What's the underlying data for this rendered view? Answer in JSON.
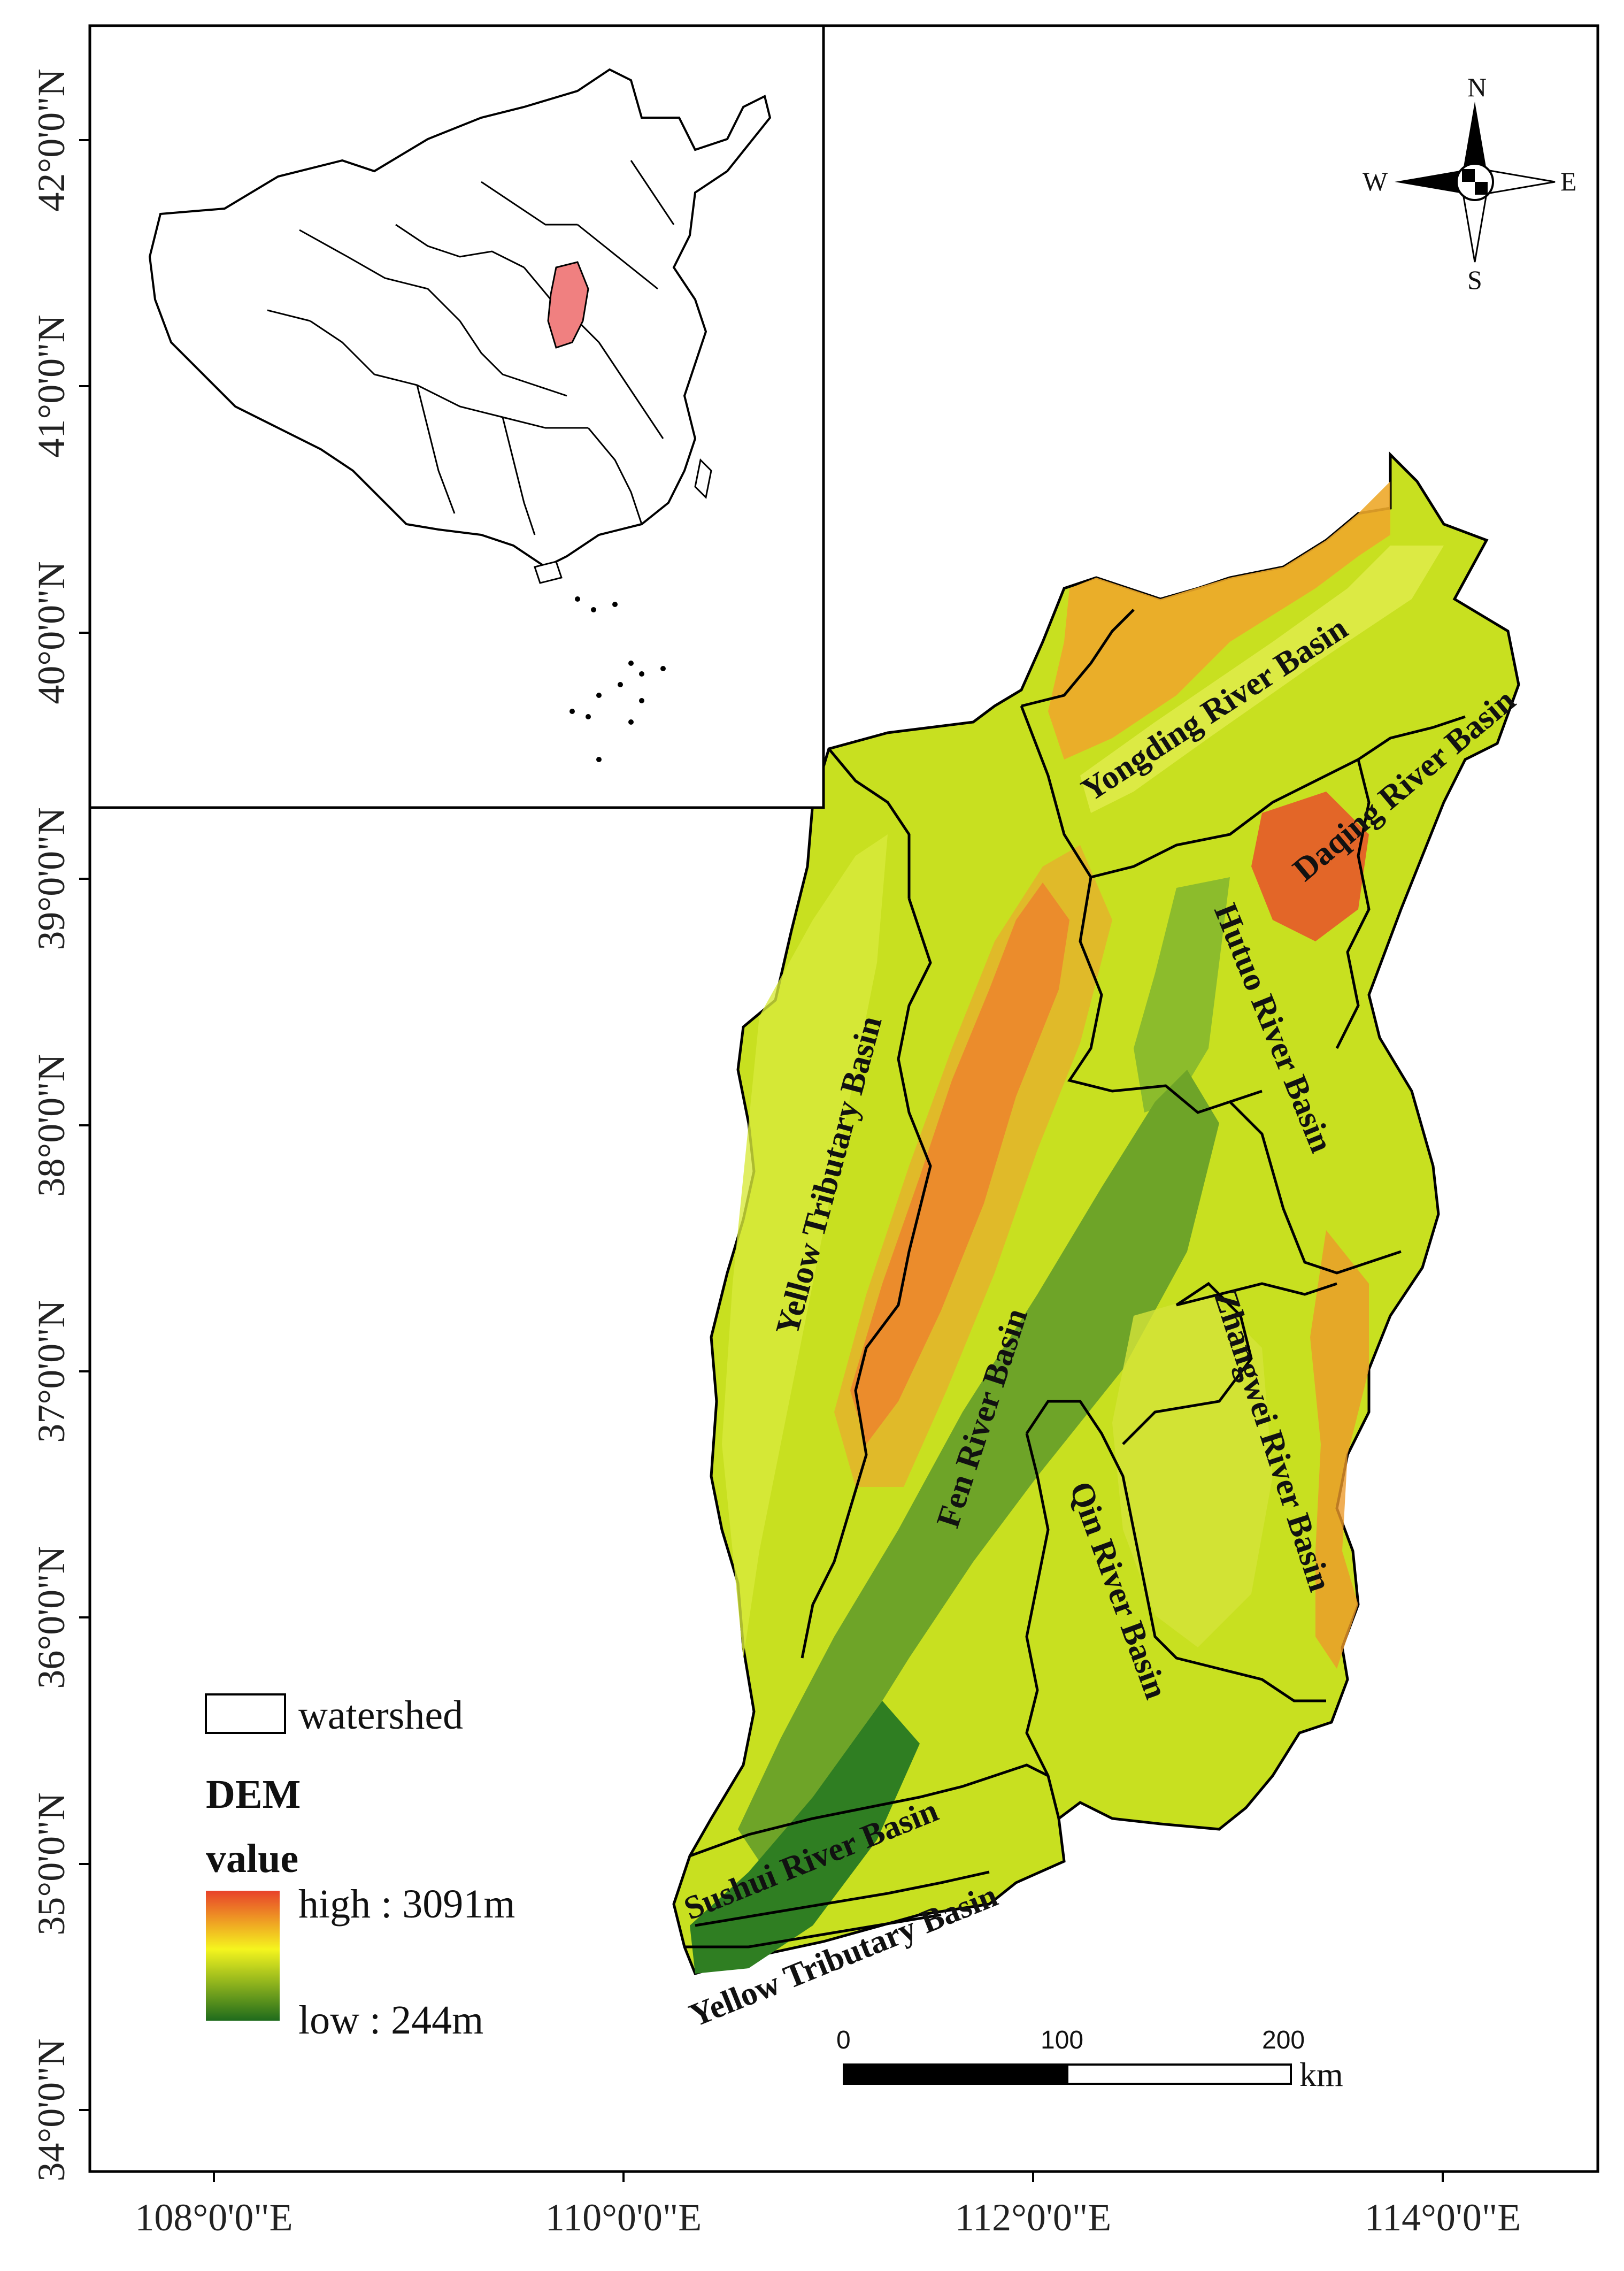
{
  "axes": {
    "lat_labels": [
      "42°0'0\"N",
      "41°0'0\"N",
      "40°0'0\"N",
      "39°0'0\"N",
      "38°0'0\"N",
      "37°0'0\"N",
      "36°0'0\"N",
      "35°0'0\"N",
      "34°0'0\"N"
    ],
    "lon_labels": [
      "108°0'0\"E",
      "110°0'0\"E",
      "112°0'0\"E",
      "114°0'0\"E"
    ]
  },
  "compass": {
    "n": "N",
    "s": "S",
    "e": "E",
    "w": "W"
  },
  "basins": {
    "yongding": "Yongding River Basin",
    "daqing": "Daqing River Basin",
    "hutuo": "Hutuo River Basin",
    "yellow_trib_north": "Yellow Tributary Basin",
    "fen": "Fen River Basin",
    "zhangwei": "Zhangwei River Basin",
    "qin": "Qin River Basin",
    "sushui": "Sushui River Basin",
    "yellow_trib_south": "Yellow Tributary Basin"
  },
  "legend": {
    "watershed": "watershed",
    "dem": "DEM",
    "value": "value",
    "high": "high : 3091m",
    "low": "low : 244m",
    "colors": {
      "high": "#e8412a",
      "mid": "#f5f51e",
      "low": "#1f6b1c"
    }
  },
  "scale_bar": {
    "ticks": [
      "0",
      "100",
      "200"
    ],
    "unit": "km"
  },
  "inset": {
    "highlight_color": "#f08080"
  }
}
